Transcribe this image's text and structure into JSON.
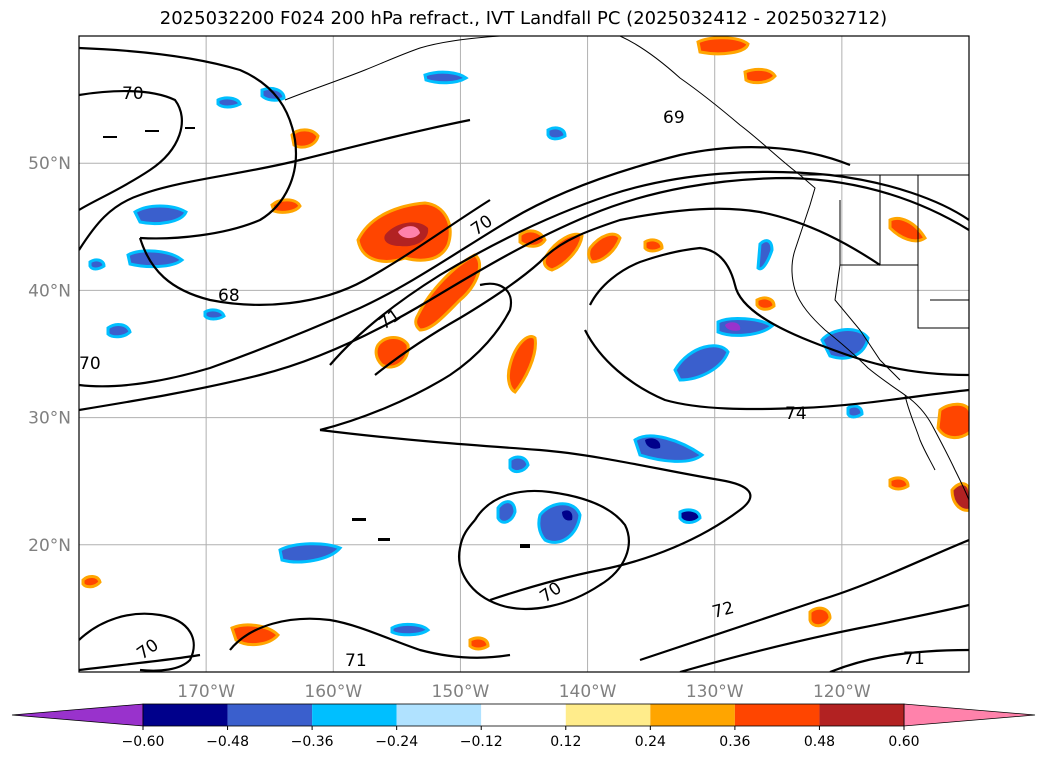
{
  "title": "2025032200 F024 200 hPa refract., IVT Landfall PC (2025032412 - 2025032712)",
  "lat_labels": [
    {
      "lat": 50,
      "label": "50°N"
    },
    {
      "lat": 40,
      "label": "40°N"
    },
    {
      "lat": 30,
      "label": "30°N"
    },
    {
      "lat": 20,
      "label": "20°N"
    }
  ],
  "lon_labels": [
    {
      "lon": -170,
      "label": "170°W"
    },
    {
      "lon": -160,
      "label": "160°W"
    },
    {
      "lon": -150,
      "label": "150°W"
    },
    {
      "lon": -140,
      "label": "140°W"
    },
    {
      "lon": -130,
      "label": "130°W"
    },
    {
      "lon": -120,
      "label": "120°W"
    }
  ],
  "extent": {
    "lon_min": -180,
    "lon_max": -110,
    "lat_min": 10,
    "lat_max": 60
  },
  "contour_labels": [
    "70",
    "68",
    "69",
    "70",
    "71",
    "70",
    "74",
    "70",
    "72",
    "70",
    "71",
    "71"
  ],
  "colorbar": {
    "colors": [
      "#9932cc",
      "#00008b",
      "#3a5fcd",
      "#00bfff",
      "#b0e2ff",
      "#ffffff",
      "#ffec8b",
      "#ffa500",
      "#ff4500",
      "#b22222",
      "#ff82ab"
    ],
    "ticks": [
      "−0.60",
      "−0.48",
      "−0.36",
      "−0.24",
      "−0.12",
      "0.12",
      "0.24",
      "0.36",
      "0.48",
      "0.60"
    ]
  }
}
